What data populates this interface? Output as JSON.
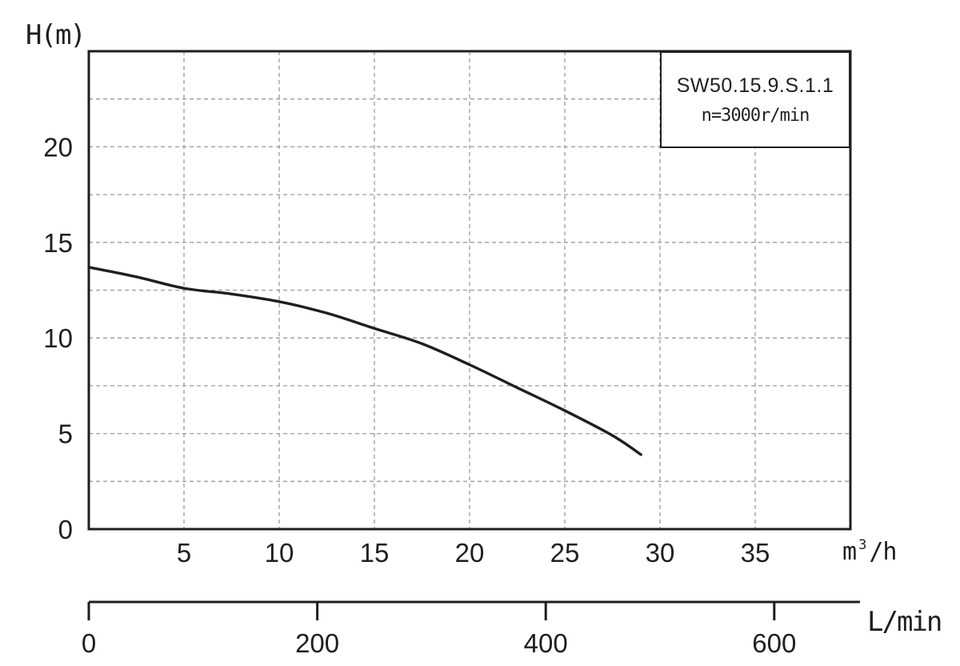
{
  "labels": {
    "y_axis_title": "H(m)",
    "x_unit_base": "m",
    "x_unit_sup": "3",
    "x_unit_rest": "/h",
    "secondary_axis_label": "L/min"
  },
  "legend": {
    "model": "SW50.15.9.S.1.1",
    "speed": "n=3000r/min"
  },
  "colors": {
    "ink": "#1f1f1f",
    "grid": "#9b9b9b",
    "background": "#ffffff"
  },
  "chart_data": {
    "type": "line",
    "title": "",
    "xlabel": "m3/h",
    "ylabel": "H(m)",
    "grid": "dashed",
    "legend_position": "top-right",
    "x_axis": {
      "range": [
        0,
        40
      ],
      "ticks": [
        5,
        10,
        15,
        20,
        25,
        30,
        35
      ],
      "gridline_step": 5
    },
    "y_axis": {
      "range": [
        0,
        25
      ],
      "ticks": [
        0,
        5,
        10,
        15,
        20
      ],
      "gridline_step": 2.5,
      "labeled_max": 20
    },
    "secondary_x_axis": {
      "unit": "L/min",
      "ticks": [
        0,
        200,
        400,
        600
      ],
      "range": [
        0,
        675
      ],
      "lmin_per_m3h": 16.6667
    },
    "series": [
      {
        "name": "SW50.15.9.S.1.1",
        "speed": "n=3000r/min",
        "points": [
          [
            0,
            13.7
          ],
          [
            2.5,
            13.2
          ],
          [
            5,
            12.6
          ],
          [
            7.5,
            12.3
          ],
          [
            10,
            11.9
          ],
          [
            12.5,
            11.3
          ],
          [
            15,
            10.5
          ],
          [
            17.5,
            9.7
          ],
          [
            20,
            8.6
          ],
          [
            22.5,
            7.4
          ],
          [
            25,
            6.2
          ],
          [
            27.5,
            4.9
          ],
          [
            29,
            3.9
          ]
        ]
      }
    ]
  }
}
